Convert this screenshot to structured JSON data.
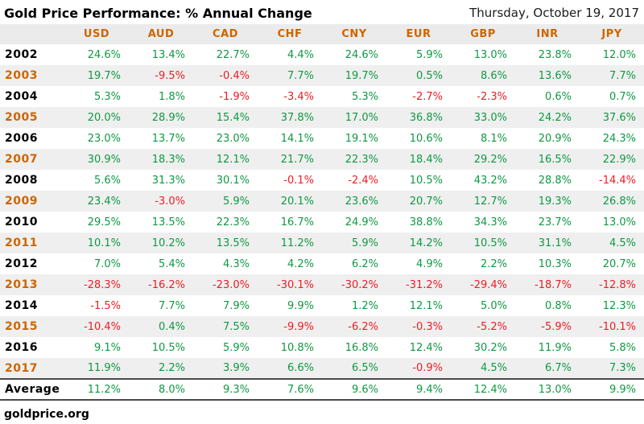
{
  "header": {
    "title": "Gold Price Performance: % Annual Change",
    "date": "Thursday, October 19, 2017"
  },
  "footer": {
    "source": "goldprice.org"
  },
  "colors": {
    "positive": "#0f9943",
    "negative": "#ee1c24",
    "accent_orange": "#cc6600",
    "stripe_gray": "#efefef",
    "header_gray": "#ebebeb"
  },
  "chart_data": {
    "type": "table",
    "title": "Gold Price Performance: % Annual Change",
    "date": "Thursday, October 19, 2017",
    "value_unit": "%",
    "columns": [
      "USD",
      "AUD",
      "CAD",
      "CHF",
      "CNY",
      "EUR",
      "GBP",
      "INR",
      "JPY"
    ],
    "rows": [
      {
        "label": "2002",
        "values": [
          24.6,
          13.4,
          22.7,
          4.4,
          24.6,
          5.9,
          13.0,
          23.8,
          12.0
        ]
      },
      {
        "label": "2003",
        "values": [
          19.7,
          -9.5,
          -0.4,
          7.7,
          19.7,
          0.5,
          8.6,
          13.6,
          7.7
        ]
      },
      {
        "label": "2004",
        "values": [
          5.3,
          1.8,
          -1.9,
          -3.4,
          5.3,
          -2.7,
          -2.3,
          0.6,
          0.7
        ]
      },
      {
        "label": "2005",
        "values": [
          20.0,
          28.9,
          15.4,
          37.8,
          17.0,
          36.8,
          33.0,
          24.2,
          37.6
        ]
      },
      {
        "label": "2006",
        "values": [
          23.0,
          13.7,
          23.0,
          14.1,
          19.1,
          10.6,
          8.1,
          20.9,
          24.3
        ]
      },
      {
        "label": "2007",
        "values": [
          30.9,
          18.3,
          12.1,
          21.7,
          22.3,
          18.4,
          29.2,
          16.5,
          22.9
        ]
      },
      {
        "label": "2008",
        "values": [
          5.6,
          31.3,
          30.1,
          -0.1,
          -2.4,
          10.5,
          43.2,
          28.8,
          -14.4
        ]
      },
      {
        "label": "2009",
        "values": [
          23.4,
          -3.0,
          5.9,
          20.1,
          23.6,
          20.7,
          12.7,
          19.3,
          26.8
        ]
      },
      {
        "label": "2010",
        "values": [
          29.5,
          13.5,
          22.3,
          16.7,
          24.9,
          38.8,
          34.3,
          23.7,
          13.0
        ]
      },
      {
        "label": "2011",
        "values": [
          10.1,
          10.2,
          13.5,
          11.2,
          5.9,
          14.2,
          10.5,
          31.1,
          4.5
        ]
      },
      {
        "label": "2012",
        "values": [
          7.0,
          5.4,
          4.3,
          4.2,
          6.2,
          4.9,
          2.2,
          10.3,
          20.7
        ]
      },
      {
        "label": "2013",
        "values": [
          -28.3,
          -16.2,
          -23.0,
          -30.1,
          -30.2,
          -31.2,
          -29.4,
          -18.7,
          -12.8
        ]
      },
      {
        "label": "2014",
        "values": [
          -1.5,
          7.7,
          7.9,
          9.9,
          1.2,
          12.1,
          5.0,
          0.8,
          12.3
        ]
      },
      {
        "label": "2015",
        "values": [
          -10.4,
          0.4,
          7.5,
          -9.9,
          -6.2,
          -0.3,
          -5.2,
          -5.9,
          -10.1
        ]
      },
      {
        "label": "2016",
        "values": [
          9.1,
          10.5,
          5.9,
          10.8,
          16.8,
          12.4,
          30.2,
          11.9,
          5.8
        ]
      },
      {
        "label": "2017",
        "values": [
          11.9,
          2.2,
          3.9,
          6.6,
          6.5,
          -0.9,
          4.5,
          6.7,
          7.3
        ]
      }
    ],
    "average": {
      "label": "Average",
      "values": [
        11.2,
        8.0,
        9.3,
        7.6,
        9.6,
        9.4,
        12.4,
        13.0,
        9.9
      ]
    }
  }
}
